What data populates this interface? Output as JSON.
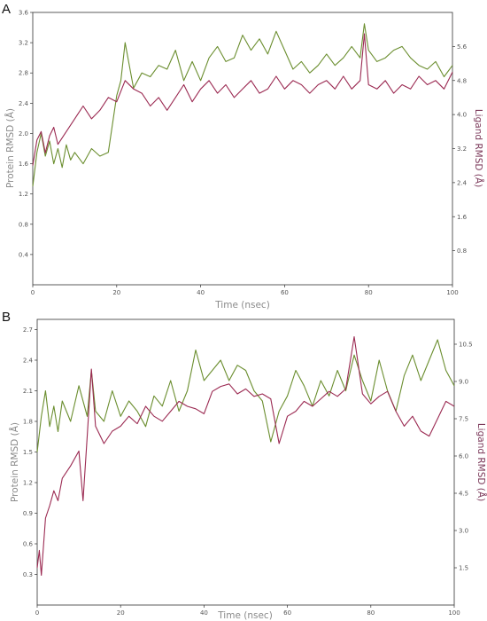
{
  "figure": {
    "tick_color": "#555555",
    "protein_axis_color": "#8a8a8a",
    "ligand_axis_color": "#7d3b5c"
  },
  "chart_data": [
    {
      "type": "line",
      "panel_label": "A",
      "xlabel": "Time (nsec)",
      "ylabel_left": "Protein RMSD (Å)",
      "ylabel_right": "Ligand RMSD (Å)",
      "xlim": [
        0,
        100
      ],
      "ylim_left": [
        0,
        3.6
      ],
      "ylim_right": [
        0,
        6.4
      ],
      "x_ticks": [
        0,
        20,
        40,
        60,
        80,
        100
      ],
      "y_ticks_left": [
        0.4,
        0.8,
        1.2,
        1.6,
        2.0,
        2.4,
        2.8,
        3.2,
        3.6
      ],
      "y_ticks_right": [
        0.8,
        1.6,
        2.4,
        3.2,
        4.0,
        4.8,
        5.6
      ],
      "grid": false,
      "series": [
        {
          "axis": "left",
          "color": "#6b8e2f",
          "x": [
            0,
            1,
            2,
            3,
            4,
            5,
            6,
            7,
            8,
            9,
            10,
            12,
            14,
            16,
            18,
            20,
            21,
            22,
            24,
            26,
            28,
            30,
            32,
            34,
            36,
            38,
            40,
            42,
            44,
            46,
            48,
            50,
            52,
            54,
            56,
            58,
            60,
            62,
            64,
            66,
            68,
            70,
            72,
            74,
            76,
            78,
            79,
            80,
            82,
            84,
            86,
            88,
            90,
            92,
            94,
            96,
            98,
            100
          ],
          "values": [
            1.3,
            1.75,
            2.0,
            1.7,
            1.9,
            1.6,
            1.8,
            1.55,
            1.85,
            1.65,
            1.75,
            1.6,
            1.8,
            1.7,
            1.75,
            2.5,
            2.7,
            3.2,
            2.6,
            2.8,
            2.75,
            2.9,
            2.85,
            3.1,
            2.7,
            2.95,
            2.7,
            3.0,
            3.15,
            2.95,
            3.0,
            3.3,
            3.1,
            3.25,
            3.05,
            3.35,
            3.1,
            2.85,
            2.95,
            2.8,
            2.9,
            3.05,
            2.9,
            3.0,
            3.15,
            3.0,
            3.45,
            3.1,
            2.95,
            3.0,
            3.1,
            3.15,
            3.0,
            2.9,
            2.85,
            2.95,
            2.75,
            2.9
          ]
        },
        {
          "axis": "right",
          "color": "#9b2a52",
          "x": [
            0,
            1,
            2,
            3,
            4,
            5,
            6,
            8,
            10,
            12,
            14,
            16,
            18,
            20,
            22,
            24,
            26,
            28,
            30,
            32,
            34,
            36,
            38,
            40,
            42,
            44,
            46,
            48,
            50,
            52,
            54,
            56,
            58,
            60,
            62,
            64,
            66,
            68,
            70,
            72,
            74,
            76,
            78,
            79,
            80,
            82,
            84,
            86,
            88,
            90,
            92,
            94,
            96,
            98,
            100
          ],
          "values": [
            2.8,
            3.4,
            3.6,
            3.1,
            3.5,
            3.7,
            3.3,
            3.6,
            3.9,
            4.2,
            3.9,
            4.1,
            4.4,
            4.3,
            4.8,
            4.6,
            4.5,
            4.2,
            4.4,
            4.1,
            4.4,
            4.7,
            4.3,
            4.6,
            4.8,
            4.5,
            4.7,
            4.4,
            4.6,
            4.8,
            4.5,
            4.6,
            4.9,
            4.6,
            4.8,
            4.7,
            4.5,
            4.7,
            4.8,
            4.6,
            4.9,
            4.6,
            4.8,
            5.9,
            4.7,
            4.6,
            4.8,
            4.5,
            4.7,
            4.6,
            4.9,
            4.7,
            4.8,
            4.6,
            5.0
          ]
        }
      ]
    },
    {
      "type": "line",
      "panel_label": "B",
      "xlabel": "Time (nsec)",
      "ylabel_left": "Protein RMSD (Å)",
      "ylabel_right": "Ligand RMSD (Å)",
      "xlim": [
        0,
        100
      ],
      "ylim_left": [
        0,
        2.8
      ],
      "ylim_right": [
        0,
        11.5
      ],
      "x_ticks": [
        0,
        20,
        40,
        60,
        80,
        100
      ],
      "y_ticks_left": [
        0.3,
        0.6,
        0.9,
        1.2,
        1.5,
        1.8,
        2.1,
        2.4,
        2.7
      ],
      "y_ticks_right": [
        1.5,
        3.0,
        4.5,
        6.0,
        7.5,
        9.0,
        10.5
      ],
      "grid": false,
      "series": [
        {
          "axis": "left",
          "color": "#6b8e2f",
          "x": [
            0,
            1,
            2,
            3,
            4,
            5,
            6,
            8,
            10,
            12,
            13,
            14,
            16,
            18,
            20,
            22,
            24,
            26,
            28,
            30,
            32,
            34,
            36,
            38,
            40,
            42,
            44,
            46,
            48,
            50,
            52,
            54,
            56,
            58,
            60,
            62,
            64,
            66,
            68,
            70,
            72,
            74,
            76,
            78,
            80,
            82,
            84,
            86,
            88,
            90,
            92,
            94,
            96,
            98,
            100
          ],
          "values": [
            1.5,
            1.85,
            2.1,
            1.75,
            1.95,
            1.7,
            2.0,
            1.8,
            2.15,
            1.85,
            2.3,
            1.9,
            1.8,
            2.1,
            1.85,
            2.0,
            1.9,
            1.75,
            2.05,
            1.95,
            2.2,
            1.9,
            2.1,
            2.5,
            2.2,
            2.3,
            2.4,
            2.2,
            2.35,
            2.3,
            2.1,
            2.0,
            1.6,
            1.9,
            2.05,
            2.3,
            2.15,
            1.95,
            2.2,
            2.05,
            2.3,
            2.1,
            2.45,
            2.2,
            2.0,
            2.4,
            2.1,
            1.9,
            2.25,
            2.45,
            2.2,
            2.4,
            2.6,
            2.3,
            2.15
          ]
        },
        {
          "axis": "right",
          "color": "#9b2a52",
          "x": [
            0,
            0.5,
            1,
            2,
            3,
            4,
            5,
            6,
            8,
            10,
            11,
            12,
            13,
            14,
            16,
            18,
            20,
            22,
            24,
            26,
            28,
            30,
            32,
            34,
            36,
            38,
            40,
            42,
            44,
            46,
            48,
            50,
            52,
            54,
            56,
            58,
            60,
            62,
            64,
            66,
            68,
            70,
            72,
            74,
            76,
            78,
            80,
            82,
            84,
            86,
            88,
            90,
            92,
            94,
            96,
            98,
            100
          ],
          "values": [
            1.5,
            2.2,
            1.2,
            3.5,
            4.0,
            4.6,
            4.2,
            5.1,
            5.6,
            6.2,
            4.2,
            6.8,
            9.5,
            7.2,
            6.5,
            7.0,
            7.2,
            7.6,
            7.3,
            8.0,
            7.6,
            7.4,
            7.8,
            8.2,
            8.0,
            7.9,
            7.7,
            8.6,
            8.8,
            8.9,
            8.5,
            8.7,
            8.4,
            8.5,
            8.3,
            6.5,
            7.6,
            7.8,
            8.2,
            8.0,
            8.3,
            8.6,
            8.4,
            8.7,
            10.8,
            8.5,
            8.1,
            8.4,
            8.6,
            7.8,
            7.2,
            7.6,
            7.0,
            6.8,
            7.5,
            8.2,
            8.0
          ]
        }
      ]
    }
  ]
}
